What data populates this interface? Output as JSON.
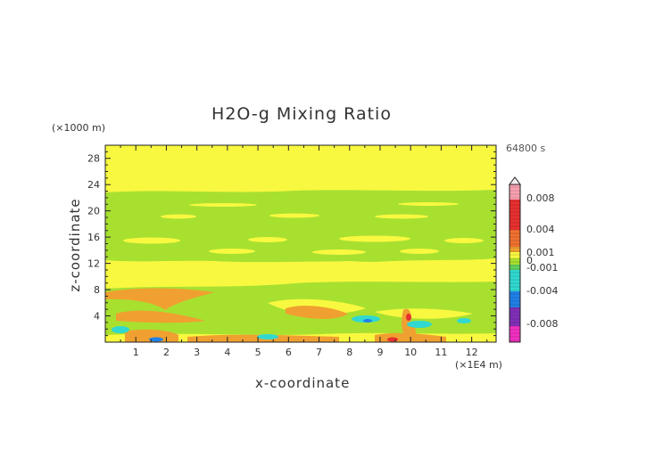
{
  "chart_data": {
    "type": "heatmap",
    "title": "H2O-g Mixing Ratio",
    "xlabel": "x-coordinate",
    "ylabel": "z-coordinate",
    "x_unit_label": "(×1E4 m)",
    "y_unit_label": "(×1000 m)",
    "time_label": "64800 s",
    "xlim": [
      0,
      12.8
    ],
    "ylim": [
      0,
      30
    ],
    "x_ticks": [
      "1",
      "2",
      "3",
      "4",
      "5",
      "6",
      "7",
      "8",
      "9",
      "10",
      "11",
      "12"
    ],
    "y_ticks": [
      "4",
      "8",
      "12",
      "16",
      "20",
      "24",
      "28"
    ],
    "colorbar": {
      "labels": [
        "0.008",
        "0.004",
        "0.001",
        "0",
        "-0.001",
        "-0.004",
        "-0.008"
      ],
      "colors": {
        "yellow": "#f8f840",
        "light_green": "#a8e030",
        "orange": "#f0a030",
        "cyan": "#30d8d0",
        "blue": "#2080e8",
        "red": "#e83030",
        "pink": "#f8a0b0",
        "magenta": "#f030c0",
        "purple": "#8030b8"
      }
    },
    "features": [
      {
        "name": "upper moist-anomaly band",
        "z_range": [
          13,
          22.5
        ],
        "value": "0 to -0.001"
      },
      {
        "name": "mid moist-anomaly band",
        "z_range": [
          5,
          9
        ],
        "value": "0 to -0.001"
      },
      {
        "name": "near-surface positive anomalies",
        "z_range": [
          0,
          8
        ],
        "value": "0.001 to 0.004"
      },
      {
        "name": "near-surface negative anomalies",
        "z_range": [
          0,
          4
        ],
        "value": "-0.001 to -0.004"
      }
    ]
  }
}
